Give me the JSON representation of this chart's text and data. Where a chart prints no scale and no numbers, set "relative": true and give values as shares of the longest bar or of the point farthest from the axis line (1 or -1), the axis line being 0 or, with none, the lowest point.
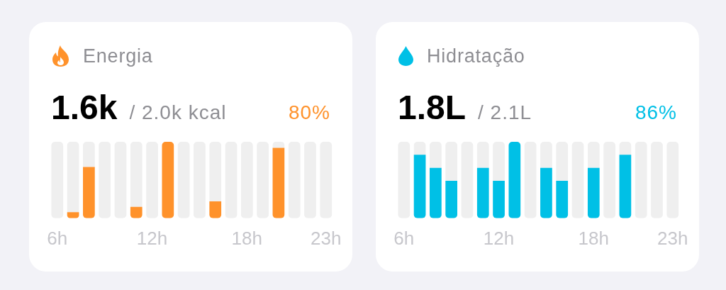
{
  "chart_data": [
    {
      "type": "bar",
      "title": "Energia",
      "annotations": [
        "1.6k",
        "/ 2.0k kcal",
        "80%"
      ],
      "categories": [
        "6h",
        null,
        null,
        null,
        null,
        null,
        "12h",
        null,
        null,
        null,
        null,
        null,
        "18h",
        null,
        null,
        null,
        null,
        "23h"
      ],
      "relative": true,
      "stacked": true,
      "series": [
        {
          "color": "#ff922b",
          "values": [
            null,
            0.08,
            0.67,
            null,
            null,
            0.15,
            null,
            1,
            null,
            null,
            0.22,
            null,
            null,
            null,
            0.92,
            null,
            null,
            null
          ]
        },
        {
          "color": "#efefef",
          "values": [
            1,
            0.92,
            0.33,
            1,
            1,
            0.85,
            1,
            null,
            1,
            1,
            0.78,
            1,
            1,
            1,
            0.08,
            1,
            1,
            1
          ]
        }
      ]
    },
    {
      "type": "bar",
      "title": "Hidratação",
      "annotations": [
        "1.8L",
        "/ 2.1L",
        "86%"
      ],
      "categories": [
        "6h",
        null,
        null,
        null,
        null,
        null,
        "12h",
        null,
        null,
        null,
        null,
        null,
        "18h",
        null,
        null,
        null,
        null,
        "23h"
      ],
      "relative": true,
      "stacked": true,
      "series": [
        {
          "color": "#00c0e6",
          "values": [
            null,
            0.83,
            0.66,
            0.49,
            null,
            0.66,
            0.49,
            1,
            null,
            0.66,
            0.49,
            null,
            0.66,
            null,
            0.83,
            null,
            null,
            null
          ]
        },
        {
          "color": "#efefef",
          "values": [
            1,
            0.17,
            0.34,
            0.51,
            1,
            0.34,
            0.51,
            null,
            1,
            0.34,
            0.51,
            1,
            0.34,
            1,
            0.17,
            1,
            1,
            1
          ]
        }
      ]
    }
  ]
}
